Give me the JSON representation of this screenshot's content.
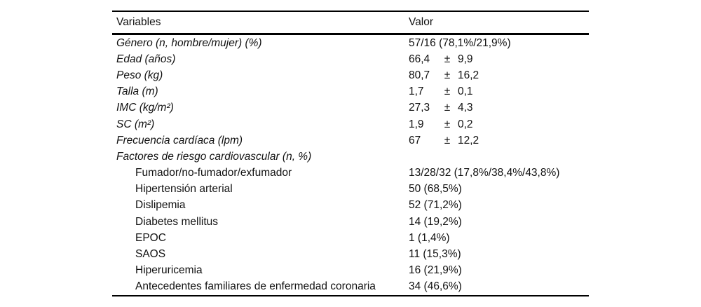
{
  "table": {
    "headers": {
      "variables": "Variables",
      "valor": "Valor"
    },
    "rows": [
      {
        "label": "Género (n, hombre/mujer) (%)",
        "italic": true,
        "indent": false,
        "value": "57/16 (78,1%/21,9%)"
      },
      {
        "label": "Edad (años)",
        "italic": true,
        "indent": false,
        "value": {
          "v1": "66,4",
          "pm": "±",
          "v2": "9,9"
        }
      },
      {
        "label": "Peso (kg)",
        "italic": true,
        "indent": false,
        "value": {
          "v1": "80,7",
          "pm": "±",
          "v2": "16,2"
        }
      },
      {
        "label": "Talla (m)",
        "italic": true,
        "indent": false,
        "value": {
          "v1": "1,7",
          "pm": "±",
          "v2": "0,1"
        }
      },
      {
        "label": "IMC (kg/m²)",
        "italic": true,
        "indent": false,
        "value": {
          "v1": "27,3",
          "pm": "±",
          "v2": "4,3"
        }
      },
      {
        "label": "SC (m²)",
        "italic": true,
        "indent": false,
        "value": {
          "v1": "1,9",
          "pm": "±",
          "v2": "0,2"
        }
      },
      {
        "label": "Frecuencia cardíaca (lpm)",
        "italic": true,
        "indent": false,
        "value": {
          "v1": "67",
          "pm": "±",
          "v2": "12,2"
        }
      },
      {
        "label": "Factores de riesgo cardiovascular (n, %)",
        "italic": true,
        "indent": false,
        "value": ""
      },
      {
        "label": "Fumador/no-fumador/exfumador",
        "italic": false,
        "indent": true,
        "value": "13/28/32 (17,8%/38,4%/43,8%)"
      },
      {
        "label": "Hipertensión arterial",
        "italic": false,
        "indent": true,
        "value": "50 (68,5%)"
      },
      {
        "label": "Dislipemia",
        "italic": false,
        "indent": true,
        "value": "52 (71,2%)"
      },
      {
        "label": "Diabetes mellitus",
        "italic": false,
        "indent": true,
        "value": "14 (19,2%)"
      },
      {
        "label": "EPOC",
        "italic": false,
        "indent": true,
        "value": "1 (1,4%)"
      },
      {
        "label": "SAOS",
        "italic": false,
        "indent": true,
        "value": "11 (15,3%)"
      },
      {
        "label": "Hiperuricemia",
        "italic": false,
        "indent": true,
        "value": "16 (21,9%)"
      },
      {
        "label": "Antecedentes familiares de enfermedad coronaria",
        "italic": false,
        "indent": true,
        "value": "34 (46,6%)"
      }
    ]
  }
}
